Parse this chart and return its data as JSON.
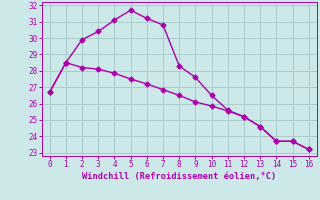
{
  "line1_x": [
    0,
    1,
    2,
    3,
    4,
    5,
    6,
    7,
    8,
    9,
    10,
    11,
    12,
    13,
    14,
    15,
    16
  ],
  "line1_y": [
    26.7,
    28.5,
    29.9,
    30.4,
    31.1,
    31.7,
    31.2,
    30.8,
    28.3,
    27.6,
    26.5,
    25.6,
    25.2,
    24.6,
    23.7,
    23.7,
    23.2
  ],
  "line2_x": [
    0,
    1,
    2,
    3,
    4,
    5,
    6,
    7,
    8,
    9,
    10,
    11,
    12,
    13,
    14,
    15,
    16
  ],
  "line2_y": [
    26.7,
    28.5,
    28.2,
    28.1,
    27.85,
    27.5,
    27.2,
    26.85,
    26.5,
    26.1,
    25.85,
    25.55,
    25.2,
    24.6,
    23.7,
    23.7,
    23.2
  ],
  "line_color": "#aa00aa",
  "bg_color": "#cce8e8",
  "grid_color": "#aacccc",
  "xlabel": "Windchill (Refroidissement éolien,°C)",
  "xlabel_color": "#aa00aa",
  "tick_color": "#aa00aa",
  "xlim": [
    -0.5,
    16.5
  ],
  "ylim": [
    22.8,
    32.2
  ],
  "xticks": [
    0,
    1,
    2,
    3,
    4,
    5,
    6,
    7,
    8,
    9,
    10,
    11,
    12,
    13,
    14,
    15,
    16
  ],
  "yticks": [
    23,
    24,
    25,
    26,
    27,
    28,
    29,
    30,
    31,
    32
  ],
  "marker": "D",
  "markersize": 2.5,
  "linewidth": 1.0
}
